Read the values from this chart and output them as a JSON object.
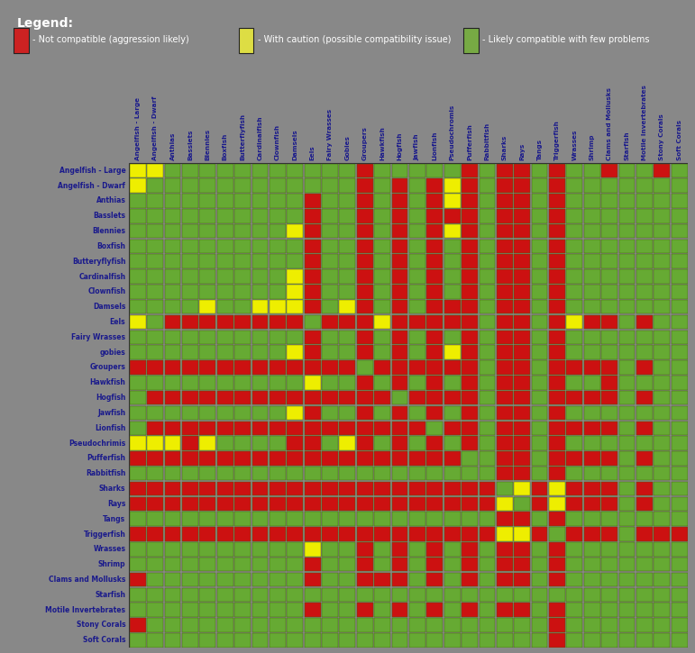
{
  "species": [
    "Angelfish - Large",
    "Angelfish - Dwarf",
    "Anthias",
    "Basslets",
    "Blennies",
    "Boxfish",
    "Butteryflyfish",
    "Cardinalfish",
    "Clownfish",
    "Damsels",
    "Eels",
    "Fairy Wrasses",
    "gobies",
    "Groupers",
    "Hawkfish",
    "Hogfish",
    "Jawfish",
    "Lionfish",
    "Pseudochrimis",
    "Pufferfish",
    "Rabbitfish",
    "Sharks",
    "Rays",
    "Tangs",
    "Triggerfish",
    "Wrasses",
    "Shrimp",
    "Clams and Mollusks",
    "Starfish",
    "Motile Invertebrates",
    "Stony Corals",
    "Soft Corals"
  ],
  "col_labels": [
    "Angelfish - Large",
    "Angelfish - Dwarf",
    "Anthias",
    "Basslets",
    "Blennies",
    "Boxfish",
    "Butterflyfish",
    "Cardinalfish",
    "Clownfish",
    "Damsels",
    "Eels",
    "Fairy Wrasses",
    "Gobies",
    "Groupers",
    "Hawkfish",
    "Hogfish",
    "Jawfish",
    "Lionfish",
    "Pseudochromis",
    "Pufferfish",
    "Rabbitfish",
    "Sharks",
    "Rays",
    "Tangs",
    "Triggerfish",
    "Wrasses",
    "Shrimp",
    "Clams and Mollusks",
    "Starfish",
    "Motile Invertebrates",
    "Stony Corals",
    "Soft Corals"
  ],
  "colors": {
    "red": "#cc1111",
    "yellow": "#eeee00",
    "green": "#66aa33",
    "bg": "#888888",
    "white": "#ffffff",
    "cell_border": "#446600",
    "text_blue": "#1a1a8c",
    "legend_red": "#cc2222",
    "legend_yellow": "#dddd44",
    "legend_green": "#77aa44"
  },
  "legend_title": "Legend:",
  "legend_items": [
    {
      "color": "#cc2222",
      "label": "- Not compatible (aggression likely)"
    },
    {
      "color": "#dddd44",
      "label": "- With caution (possible compatibility issue)"
    },
    {
      "color": "#77aa44",
      "label": "- Likely compatible with few problems"
    }
  ],
  "matrix": [
    [
      1,
      1,
      2,
      2,
      2,
      2,
      2,
      2,
      2,
      2,
      2,
      2,
      2,
      0,
      2,
      2,
      2,
      2,
      2,
      0,
      2,
      0,
      0,
      2,
      0,
      2,
      2,
      0,
      2,
      2,
      0,
      2
    ],
    [
      1,
      2,
      2,
      2,
      2,
      2,
      2,
      2,
      2,
      2,
      2,
      2,
      2,
      0,
      2,
      0,
      2,
      0,
      1,
      0,
      2,
      0,
      0,
      2,
      0,
      2,
      2,
      2,
      2,
      2,
      2,
      2
    ],
    [
      2,
      2,
      2,
      2,
      2,
      2,
      2,
      2,
      2,
      2,
      0,
      2,
      2,
      0,
      2,
      0,
      2,
      0,
      1,
      0,
      2,
      0,
      0,
      2,
      0,
      2,
      2,
      2,
      2,
      2,
      2,
      2
    ],
    [
      2,
      2,
      2,
      2,
      2,
      2,
      2,
      2,
      2,
      2,
      0,
      2,
      2,
      0,
      2,
      0,
      2,
      0,
      0,
      0,
      2,
      0,
      0,
      2,
      0,
      2,
      2,
      2,
      2,
      2,
      2,
      2
    ],
    [
      2,
      2,
      2,
      2,
      2,
      2,
      2,
      2,
      2,
      1,
      0,
      2,
      2,
      0,
      2,
      0,
      2,
      0,
      1,
      0,
      2,
      0,
      0,
      2,
      0,
      2,
      2,
      2,
      2,
      2,
      2,
      2
    ],
    [
      2,
      2,
      2,
      2,
      2,
      2,
      2,
      2,
      2,
      2,
      0,
      2,
      2,
      0,
      2,
      0,
      2,
      0,
      2,
      0,
      2,
      0,
      0,
      2,
      0,
      2,
      2,
      2,
      2,
      2,
      2,
      2
    ],
    [
      2,
      2,
      2,
      2,
      2,
      2,
      2,
      2,
      2,
      2,
      0,
      2,
      2,
      0,
      2,
      0,
      2,
      0,
      2,
      0,
      2,
      0,
      0,
      2,
      0,
      2,
      2,
      2,
      2,
      2,
      2,
      2
    ],
    [
      2,
      2,
      2,
      2,
      2,
      2,
      2,
      2,
      2,
      1,
      0,
      2,
      2,
      0,
      2,
      0,
      2,
      0,
      2,
      0,
      2,
      0,
      0,
      2,
      0,
      2,
      2,
      2,
      2,
      2,
      2,
      2
    ],
    [
      2,
      2,
      2,
      2,
      2,
      2,
      2,
      2,
      2,
      1,
      0,
      2,
      2,
      0,
      2,
      0,
      2,
      0,
      2,
      0,
      2,
      0,
      0,
      2,
      0,
      2,
      2,
      2,
      2,
      2,
      2,
      2
    ],
    [
      2,
      2,
      2,
      2,
      1,
      2,
      2,
      1,
      1,
      1,
      0,
      2,
      1,
      0,
      2,
      0,
      2,
      0,
      0,
      0,
      2,
      0,
      0,
      2,
      0,
      2,
      2,
      2,
      2,
      2,
      2,
      2
    ],
    [
      1,
      2,
      0,
      0,
      0,
      0,
      0,
      0,
      0,
      0,
      2,
      0,
      0,
      0,
      1,
      0,
      0,
      0,
      0,
      0,
      2,
      0,
      0,
      2,
      0,
      1,
      0,
      0,
      2,
      0,
      2,
      2
    ],
    [
      2,
      2,
      2,
      2,
      2,
      2,
      2,
      2,
      2,
      2,
      0,
      2,
      2,
      0,
      2,
      0,
      2,
      0,
      2,
      0,
      2,
      0,
      0,
      2,
      0,
      2,
      2,
      2,
      2,
      2,
      2,
      2
    ],
    [
      2,
      2,
      2,
      2,
      2,
      2,
      2,
      2,
      2,
      1,
      0,
      2,
      2,
      0,
      2,
      0,
      2,
      0,
      1,
      0,
      2,
      0,
      0,
      2,
      0,
      2,
      2,
      2,
      2,
      2,
      2,
      2
    ],
    [
      0,
      0,
      0,
      0,
      0,
      0,
      0,
      0,
      0,
      0,
      0,
      0,
      0,
      2,
      0,
      0,
      0,
      0,
      0,
      0,
      2,
      0,
      0,
      2,
      0,
      0,
      0,
      0,
      2,
      0,
      2,
      2
    ],
    [
      2,
      2,
      2,
      2,
      2,
      2,
      2,
      2,
      2,
      2,
      1,
      2,
      2,
      0,
      2,
      0,
      2,
      0,
      2,
      0,
      2,
      0,
      0,
      2,
      0,
      2,
      2,
      0,
      2,
      2,
      2,
      2
    ],
    [
      2,
      0,
      0,
      0,
      0,
      0,
      0,
      0,
      0,
      0,
      0,
      0,
      0,
      0,
      0,
      2,
      0,
      0,
      0,
      0,
      2,
      0,
      0,
      2,
      0,
      0,
      0,
      0,
      2,
      0,
      2,
      2
    ],
    [
      2,
      2,
      2,
      2,
      2,
      2,
      2,
      2,
      2,
      1,
      0,
      2,
      2,
      0,
      2,
      0,
      2,
      0,
      2,
      0,
      2,
      0,
      0,
      2,
      0,
      2,
      2,
      2,
      2,
      2,
      2,
      2
    ],
    [
      2,
      0,
      0,
      0,
      0,
      0,
      0,
      0,
      0,
      0,
      0,
      0,
      0,
      0,
      0,
      0,
      0,
      2,
      0,
      0,
      2,
      0,
      0,
      2,
      0,
      0,
      0,
      0,
      2,
      0,
      2,
      2
    ],
    [
      1,
      1,
      1,
      0,
      1,
      2,
      2,
      2,
      2,
      0,
      0,
      2,
      1,
      0,
      2,
      0,
      2,
      0,
      2,
      0,
      2,
      0,
      0,
      2,
      0,
      2,
      2,
      2,
      2,
      2,
      2,
      2
    ],
    [
      0,
      0,
      0,
      0,
      0,
      0,
      0,
      0,
      0,
      0,
      0,
      0,
      0,
      0,
      0,
      0,
      0,
      0,
      0,
      2,
      2,
      0,
      0,
      2,
      0,
      0,
      0,
      0,
      2,
      0,
      2,
      2
    ],
    [
      2,
      2,
      2,
      2,
      2,
      2,
      2,
      2,
      2,
      2,
      2,
      2,
      2,
      2,
      2,
      2,
      2,
      2,
      2,
      2,
      2,
      0,
      0,
      2,
      0,
      2,
      2,
      2,
      2,
      2,
      2,
      2
    ],
    [
      0,
      0,
      0,
      0,
      0,
      0,
      0,
      0,
      0,
      0,
      0,
      0,
      0,
      0,
      0,
      0,
      0,
      0,
      0,
      0,
      0,
      2,
      1,
      0,
      1,
      0,
      0,
      0,
      2,
      0,
      2,
      2
    ],
    [
      0,
      0,
      0,
      0,
      0,
      0,
      0,
      0,
      0,
      0,
      0,
      0,
      0,
      0,
      0,
      0,
      0,
      0,
      0,
      0,
      0,
      1,
      2,
      0,
      1,
      0,
      0,
      0,
      2,
      0,
      2,
      2
    ],
    [
      2,
      2,
      2,
      2,
      2,
      2,
      2,
      2,
      2,
      2,
      2,
      2,
      2,
      2,
      2,
      2,
      2,
      2,
      2,
      2,
      2,
      0,
      0,
      2,
      0,
      2,
      2,
      2,
      2,
      2,
      2,
      2
    ],
    [
      0,
      0,
      0,
      0,
      0,
      0,
      0,
      0,
      0,
      0,
      0,
      0,
      0,
      0,
      0,
      0,
      0,
      0,
      0,
      0,
      0,
      1,
      1,
      0,
      2,
      0,
      0,
      0,
      2,
      0,
      0,
      0
    ],
    [
      2,
      2,
      2,
      2,
      2,
      2,
      2,
      2,
      2,
      2,
      1,
      2,
      2,
      0,
      2,
      0,
      2,
      0,
      2,
      0,
      2,
      0,
      0,
      2,
      0,
      2,
      2,
      2,
      2,
      2,
      2,
      2
    ],
    [
      2,
      2,
      2,
      2,
      2,
      2,
      2,
      2,
      2,
      2,
      0,
      2,
      2,
      0,
      2,
      0,
      2,
      0,
      2,
      0,
      2,
      0,
      0,
      2,
      0,
      2,
      2,
      2,
      2,
      2,
      2,
      2
    ],
    [
      0,
      2,
      2,
      2,
      2,
      2,
      2,
      2,
      2,
      2,
      0,
      2,
      2,
      0,
      0,
      0,
      2,
      0,
      2,
      0,
      2,
      0,
      0,
      2,
      0,
      2,
      2,
      2,
      2,
      2,
      2,
      2
    ],
    [
      2,
      2,
      2,
      2,
      2,
      2,
      2,
      2,
      2,
      2,
      2,
      2,
      2,
      2,
      2,
      2,
      2,
      2,
      2,
      2,
      2,
      2,
      2,
      2,
      2,
      2,
      2,
      2,
      2,
      2,
      2,
      2
    ],
    [
      2,
      2,
      2,
      2,
      2,
      2,
      2,
      2,
      2,
      2,
      0,
      2,
      2,
      0,
      2,
      0,
      2,
      0,
      2,
      0,
      2,
      0,
      0,
      2,
      0,
      2,
      2,
      2,
      2,
      2,
      2,
      2
    ],
    [
      0,
      2,
      2,
      2,
      2,
      2,
      2,
      2,
      2,
      2,
      2,
      2,
      2,
      2,
      2,
      2,
      2,
      2,
      2,
      2,
      2,
      2,
      2,
      2,
      0,
      2,
      2,
      2,
      2,
      2,
      2,
      2
    ],
    [
      2,
      2,
      2,
      2,
      2,
      2,
      2,
      2,
      2,
      2,
      2,
      2,
      2,
      2,
      2,
      2,
      2,
      2,
      2,
      2,
      2,
      2,
      2,
      2,
      0,
      2,
      2,
      2,
      2,
      2,
      2,
      2
    ]
  ]
}
